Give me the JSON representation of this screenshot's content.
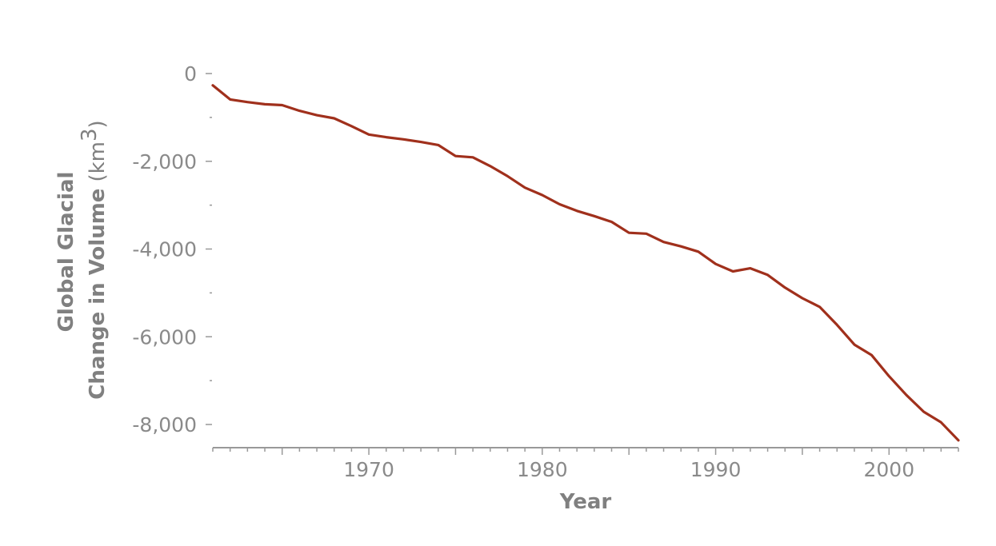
{
  "chart_data": {
    "type": "line",
    "title": "",
    "xlabel": "Year",
    "ylabel_line1": "Global Glacial",
    "ylabel_line2": "Change in Volume",
    "ylabel_unit_open": "(km",
    "ylabel_unit_sup": "3",
    "ylabel_unit_close": ")",
    "xlim": [
      1961,
      2004
    ],
    "ylim": [
      -8500,
      300
    ],
    "x_ticks": [
      {
        "value": 1970,
        "label": "1970"
      },
      {
        "value": 1980,
        "label": "1980"
      },
      {
        "value": 1990,
        "label": "1990"
      },
      {
        "value": 2000,
        "label": "2000"
      }
    ],
    "y_ticks": [
      {
        "value": 0,
        "label": "0"
      },
      {
        "value": -2000,
        "label": "-2,000"
      },
      {
        "value": -4000,
        "label": "-4,000"
      },
      {
        "value": -6000,
        "label": "-6,000"
      },
      {
        "value": -8000,
        "label": "-8,000"
      }
    ],
    "y_minor_ticks": [
      -1000,
      -3000,
      -5000,
      -7000
    ],
    "grid": false,
    "colors": {
      "line": "#a0301c",
      "axis": "#999999",
      "text": "#8a8a8a"
    },
    "series": [
      {
        "name": "",
        "x": [
          1961,
          1962,
          1963,
          1964,
          1965,
          1966,
          1967,
          1968,
          1969,
          1970,
          1971,
          1972,
          1973,
          1974,
          1975,
          1976,
          1977,
          1978,
          1979,
          1980,
          1981,
          1982,
          1983,
          1984,
          1985,
          1986,
          1987,
          1988,
          1989,
          1990,
          1991,
          1992,
          1993,
          1994,
          1995,
          1996,
          1997,
          1998,
          1999,
          2000,
          2001,
          2002,
          2003,
          2004
        ],
        "y": [
          -270,
          -590,
          -650,
          -700,
          -720,
          -850,
          -950,
          -1020,
          -1200,
          -1390,
          -1450,
          -1500,
          -1560,
          -1630,
          -1880,
          -1910,
          -2110,
          -2340,
          -2600,
          -2770,
          -2980,
          -3130,
          -3250,
          -3380,
          -3630,
          -3650,
          -3840,
          -3940,
          -4060,
          -4340,
          -4510,
          -4440,
          -4590,
          -4880,
          -5120,
          -5320,
          -5730,
          -6180,
          -6420,
          -6900,
          -7330,
          -7710,
          -7950,
          -8360
        ]
      }
    ]
  }
}
